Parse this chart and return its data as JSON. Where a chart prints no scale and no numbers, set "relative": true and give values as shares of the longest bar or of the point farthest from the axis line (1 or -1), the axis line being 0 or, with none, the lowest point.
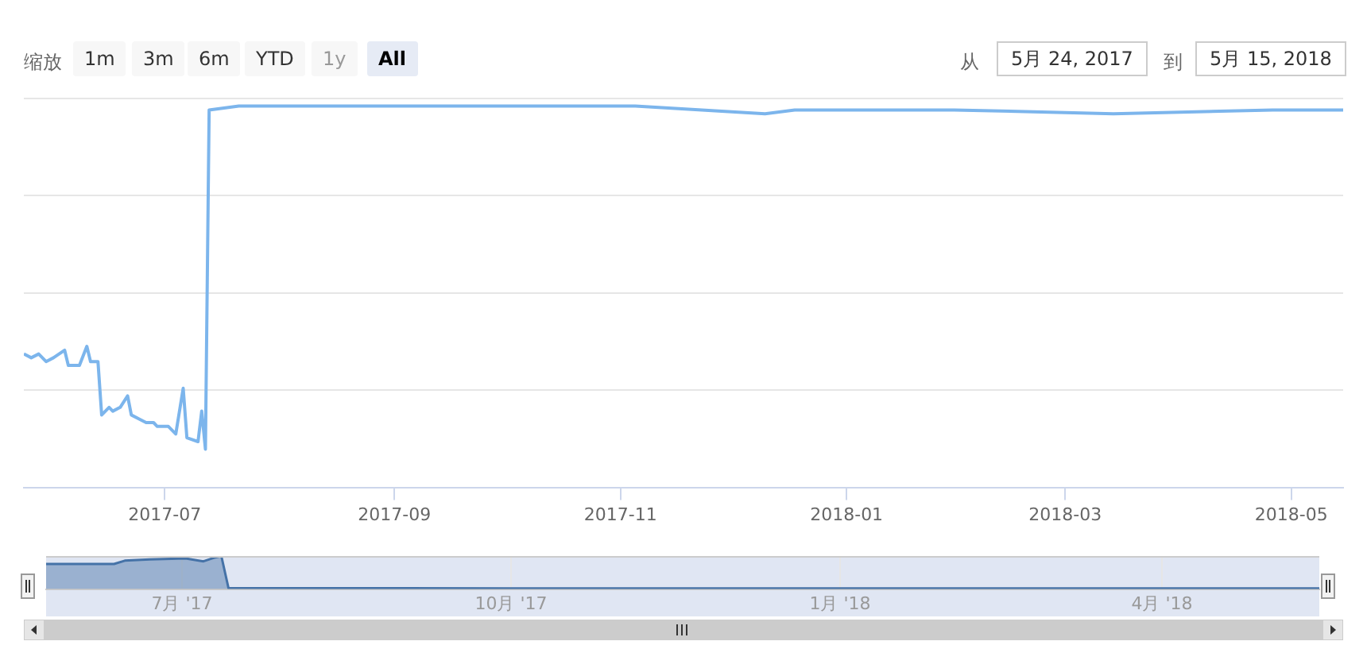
{
  "chart_data": [
    {
      "type": "line",
      "relative": true,
      "annotations": [
        "缩放",
        "1m",
        "3m",
        "6m",
        "YTD",
        "1y",
        "All",
        "从",
        "5月 24, 2017",
        "到",
        "5月 15, 2018"
      ],
      "x": [
        "2017-05-24",
        "2017-05-26",
        "2017-05-28",
        "2017-05-30",
        "2017-06-01",
        "2017-06-04",
        "2017-06-05",
        "2017-06-08",
        "2017-06-10",
        "2017-06-11",
        "2017-06-13",
        "2017-06-14",
        "2017-06-16",
        "2017-06-17",
        "2017-06-19",
        "2017-06-21",
        "2017-06-22",
        "2017-06-24",
        "2017-06-26",
        "2017-06-28",
        "2017-06-29",
        "2017-07-02",
        "2017-07-04",
        "2017-07-06",
        "2017-07-07",
        "2017-07-10",
        "2017-07-11",
        "2017-07-12",
        "2017-07-13",
        "2017-07-21",
        "2017-08-11",
        "2017-09-23",
        "2017-11-05",
        "2017-12-10",
        "2017-12-18",
        "2018-01-30",
        "2018-03-14",
        "2018-04-26",
        "2018-05-15"
      ],
      "series": [
        {
          "color": "#7cb5ec",
          "values": [
            0.35,
            0.34,
            0.35,
            0.33,
            0.34,
            0.36,
            0.32,
            0.32,
            0.37,
            0.33,
            0.33,
            0.19,
            0.21,
            0.2,
            0.21,
            0.24,
            0.19,
            0.18,
            0.17,
            0.17,
            0.16,
            0.16,
            0.14,
            0.26,
            0.13,
            0.12,
            0.2,
            0.1,
            0.99,
            1.0,
            1.0,
            1.0,
            1.0,
            0.98,
            0.99,
            0.99,
            0.98,
            0.99,
            0.99
          ]
        }
      ],
      "xlim": [
        "2017-05-24",
        "2018-05-15"
      ],
      "xticks": [
        {
          "value": "2017-07-01",
          "label": "2017-07"
        },
        {
          "value": "2017-09-01",
          "label": "2017-09"
        },
        {
          "value": "2017-11-01",
          "label": "2017-11"
        },
        {
          "value": "2018-01-01",
          "label": "2018-01"
        },
        {
          "value": "2018-03-01",
          "label": "2018-03"
        },
        {
          "value": "2018-05-01",
          "label": "2018-05"
        }
      ],
      "grid": "y",
      "tick_labels": "x",
      "marker": "none",
      "line_style": "solid"
    },
    {
      "type": "area",
      "relative": true,
      "x": [
        "2017-05-24",
        "2017-06-12",
        "2017-06-15",
        "2017-06-22",
        "2017-07-02",
        "2017-07-07",
        "2017-07-10",
        "2017-07-12",
        "2017-07-14",
        "2017-10-01",
        "2018-01-01",
        "2018-05-15"
      ],
      "series": [
        {
          "color": "#4572a7",
          "values": [
            0.76,
            0.76,
            0.86,
            0.9,
            0.93,
            0.84,
            0.95,
            1.0,
            0.03,
            0.02,
            0.02,
            0.02
          ]
        }
      ],
      "xlim": [
        "2017-05-24",
        "2018-05-15"
      ],
      "xticks": [
        {
          "value": "2017-07-01",
          "label": "7月 '17"
        },
        {
          "value": "2017-10-01",
          "label": "10月 '17"
        },
        {
          "value": "2018-01-01",
          "label": "1月 '18"
        },
        {
          "value": "2018-04-01",
          "label": "4月 '18"
        }
      ],
      "grid": "x",
      "tick_labels": "x",
      "marker": "none",
      "line_style": "solid"
    }
  ]
}
